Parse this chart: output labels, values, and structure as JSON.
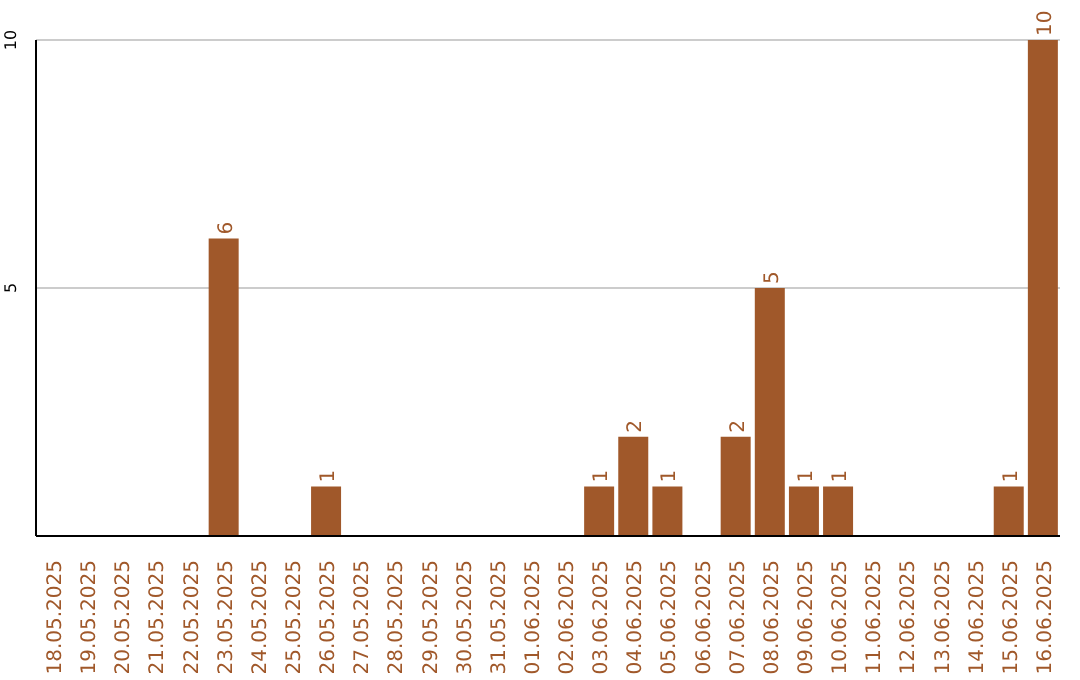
{
  "chart_data": {
    "type": "bar",
    "categories": [
      "18.05.2025",
      "19.05.2025",
      "20.05.2025",
      "21.05.2025",
      "22.05.2025",
      "23.05.2025",
      "24.05.2025",
      "25.05.2025",
      "26.05.2025",
      "27.05.2025",
      "28.05.2025",
      "29.05.2025",
      "30.05.2025",
      "31.05.2025",
      "01.06.2025",
      "02.06.2025",
      "03.06.2025",
      "04.06.2025",
      "05.06.2025",
      "06.06.2025",
      "07.06.2025",
      "08.06.2025",
      "09.06.2025",
      "10.06.2025",
      "11.06.2025",
      "12.06.2025",
      "13.06.2025",
      "14.06.2025",
      "15.06.2025",
      "16.06.2025"
    ],
    "values": [
      0,
      0,
      0,
      0,
      0,
      6,
      0,
      0,
      1,
      0,
      0,
      0,
      0,
      0,
      0,
      0,
      1,
      2,
      1,
      0,
      2,
      5,
      1,
      1,
      0,
      0,
      0,
      0,
      1,
      10
    ],
    "value_labels": [
      null,
      null,
      null,
      null,
      null,
      "6",
      null,
      null,
      "1",
      null,
      null,
      null,
      null,
      null,
      null,
      null,
      "1",
      "2",
      "1",
      null,
      "2",
      "5",
      "1",
      "1",
      null,
      null,
      null,
      null,
      "1",
      "10"
    ],
    "color": "#a0582a",
    "ylim": [
      0,
      10
    ],
    "yticks": [
      {
        "value": 0,
        "label": null
      },
      5,
      10
    ],
    "grid": "y"
  }
}
